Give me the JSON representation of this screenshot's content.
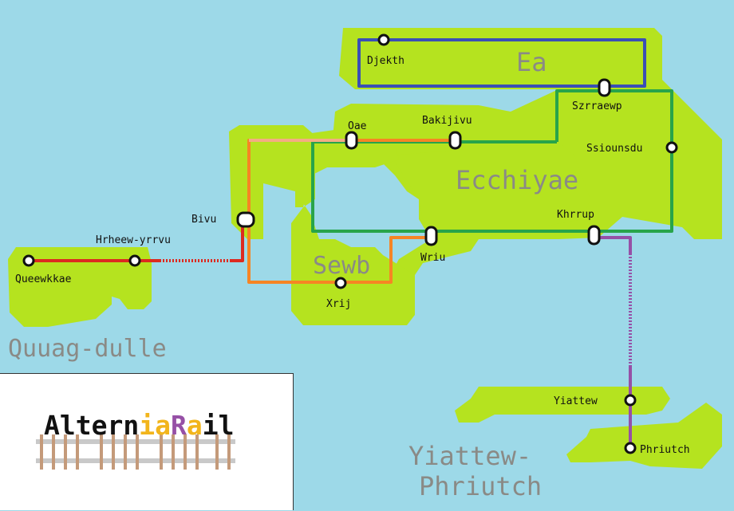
{
  "colors": {
    "water": "#9dd9e8",
    "land": "#b5e31f",
    "line_blue": "#3a4fb5",
    "line_green": "#28a44a",
    "line_orange": "#f68524",
    "line_red": "#dd2a1f",
    "line_purple": "#9650a6",
    "label_gray": "#8a8a86"
  },
  "regions": {
    "ea": "Ea",
    "ecchiyae": "Ecchiyae",
    "sewb": "Sewb",
    "quuag": "Quuag-dulle",
    "yiattew_1": "Yiattew-",
    "yiattew_2": "Phriutch"
  },
  "stations": {
    "djekth": "Djekth",
    "szrraewp": "Szrraewp",
    "ssiounsdu": "Ssiounsdu",
    "oae": "Oae",
    "bakijivu": "Bakijivu",
    "bivu": "Bivu",
    "hrheew": "Hrheew-yrrvu",
    "queewkkae": "Queewkkae",
    "khrrup": "Khrrup",
    "wriu": "Wriu",
    "xrij": "Xrij",
    "yiattew": "Yiattew",
    "phriutch": "Phriutch"
  },
  "logo": {
    "part1": "Altern",
    "part2": "ia",
    "part3": "R",
    "part4": "a",
    "part5": "il",
    "color1": "#111111",
    "color2": "#f2b51c",
    "color3": "#9650a6"
  }
}
